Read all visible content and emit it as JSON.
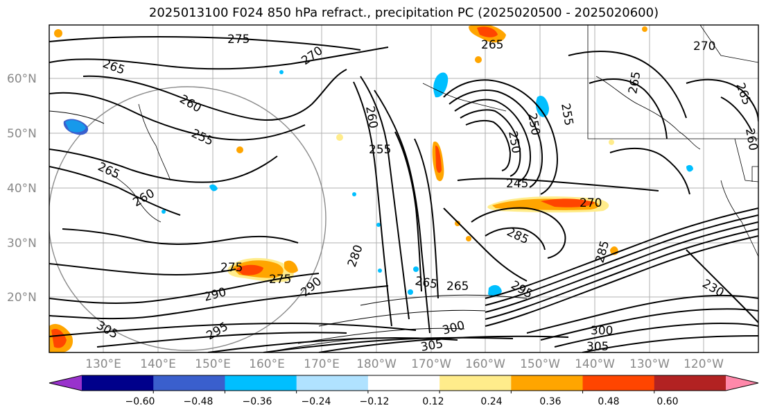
{
  "title": "2025013100 F024 850 hPa refract., precipitation PC (2025020500 - 2025020600)",
  "lat_labels": [
    "60°N",
    "50°N",
    "40°N",
    "30°N",
    "20°N"
  ],
  "lon_labels": [
    "130°E",
    "140°E",
    "150°E",
    "160°E",
    "170°E",
    "180°W",
    "170°W",
    "160°W",
    "150°W",
    "140°W",
    "130°W",
    "120°W"
  ],
  "colorbar": {
    "colors": [
      "#9932cc",
      "#00008b",
      "#3a5fcd",
      "#00bfff",
      "#b0e2ff",
      "#ffffff",
      "#ffec8b",
      "#ffa500",
      "#ff4500",
      "#b22222",
      "#ff88aa"
    ],
    "tick_labels": [
      "−0.60",
      "−0.48",
      "−0.36",
      "−0.24",
      "−0.12",
      "0.12",
      "0.24",
      "0.36",
      "0.48",
      "0.60"
    ]
  },
  "contour_labels": [
    "275",
    "265",
    "270",
    "265",
    "260",
    "255",
    "265",
    "260",
    "265",
    "250",
    "255",
    "260",
    "255",
    "245",
    "270",
    "285",
    "275",
    "290",
    "295",
    "305",
    "300",
    "305",
    "265",
    "230",
    "250",
    "290",
    "265",
    "280",
    "295",
    "285",
    "275",
    "300",
    "305",
    "270",
    "265",
    "260"
  ],
  "colors": {
    "contour": "#000000",
    "positive_light": "#ffec8b",
    "positive_mid": "#ffa500",
    "positive_strong": "#ff4500",
    "negative_light": "#b0e2ff",
    "negative_mid": "#00bfff",
    "negative_strong": "#3a5fcd",
    "grid": "#b0b0b0",
    "coast": "#000000"
  }
}
